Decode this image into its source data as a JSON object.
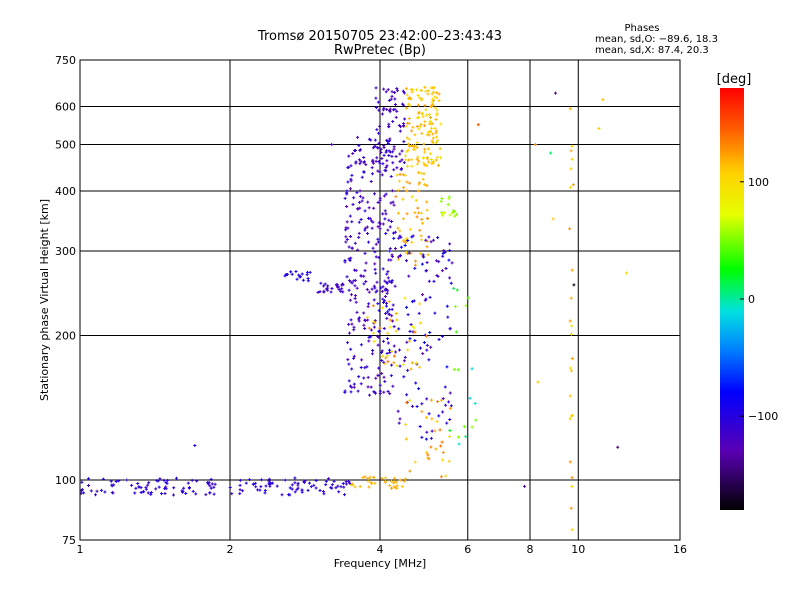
{
  "chart_data": {
    "type": "scatter",
    "title": "Tromsø 20150705 23:42:00–23:43:43",
    "subtitle": "RwPretec (Bp)",
    "xlabel": "Frequency [MHz]",
    "ylabel": "Stationary phase Virtual Height [km]",
    "x_scale": "log2",
    "y_scale": "log",
    "xlim": [
      1,
      16
    ],
    "ylim": [
      75,
      750
    ],
    "x_ticks": [
      1,
      2,
      4,
      6,
      8,
      10,
      16
    ],
    "y_ticks": [
      75,
      100,
      200,
      300,
      400,
      500,
      600,
      750
    ],
    "x_tick_labels": [
      "1",
      "2",
      "4",
      "6",
      "8",
      "10",
      "16"
    ],
    "y_tick_labels": [
      "75",
      "100",
      "200",
      "300",
      "400",
      "500",
      "600",
      "750"
    ],
    "grid": true,
    "phase_stats": {
      "heading": "Phases",
      "line_o": "mean, sd,O: −89.6, 18.3",
      "line_x": "mean, sd,X:  87.4, 20.3"
    },
    "colorbar": {
      "label": "[deg]",
      "range": [
        -180,
        180
      ],
      "ticks": [
        100,
        0,
        -100
      ],
      "tick_labels": [
        "100",
        "0",
        "−100"
      ]
    },
    "clusters": [
      {
        "x": [
          1.0,
          3.5
        ],
        "y": [
          93,
          101
        ],
        "phase": [
          -95,
          -115
        ],
        "n": 160
      },
      {
        "x": [
          3.5,
          4.5
        ],
        "y": [
          96,
          102
        ],
        "phase": [
          110,
          125
        ],
        "n": 35
      },
      {
        "x": [
          2.55,
          2.9
        ],
        "y": [
          260,
          272
        ],
        "phase": [
          -90,
          -100
        ],
        "n": 18
      },
      {
        "x": [
          3.0,
          3.4
        ],
        "y": [
          246,
          258
        ],
        "phase": [
          -105,
          -120
        ],
        "n": 25
      },
      {
        "x": [
          3.4,
          4.3
        ],
        "y": [
          150,
          520
        ],
        "phase": [
          -100,
          -130
        ],
        "n": 300
      },
      {
        "x": [
          3.9,
          4.5
        ],
        "y": [
          440,
          660
        ],
        "phase": [
          -105,
          -125
        ],
        "n": 80
      },
      {
        "x": [
          4.5,
          5.3
        ],
        "y": [
          450,
          660
        ],
        "phase": [
          95,
          125
        ],
        "n": 140
      },
      {
        "x": [
          4.3,
          5.0
        ],
        "y": [
          280,
          440
        ],
        "phase": [
          100,
          130
        ],
        "n": 60
      },
      {
        "x": [
          4.0,
          5.6
        ],
        "y": [
          120,
          330
        ],
        "phase": [
          -80,
          -130
        ],
        "n": 130
      },
      {
        "x": [
          3.7,
          5.0
        ],
        "y": [
          170,
          240
        ],
        "phase": [
          80,
          140
        ],
        "n": 40
      },
      {
        "x": [
          4.5,
          5.6
        ],
        "y": [
          100,
          150
        ],
        "phase": [
          100,
          140
        ],
        "n": 30
      },
      {
        "x": [
          5.3,
          5.7
        ],
        "y": [
          350,
          390
        ],
        "phase": [
          50,
          70
        ],
        "n": 15
      },
      {
        "x": [
          5.5,
          6.3
        ],
        "y": [
          110,
          260
        ],
        "phase": [
          -20,
          60
        ],
        "n": 18
      },
      {
        "x": [
          9.6,
          9.8
        ],
        "y": [
          78,
          640
        ],
        "phase": [
          95,
          130
        ],
        "n": 25
      }
    ],
    "isolated_points": [
      {
        "x": 1.7,
        "y": 118,
        "phase": -95
      },
      {
        "x": 3.2,
        "y": 500,
        "phase": -120
      },
      {
        "x": 9.0,
        "y": 640,
        "phase": -140
      },
      {
        "x": 9.8,
        "y": 255,
        "phase": -170
      },
      {
        "x": 12.0,
        "y": 117,
        "phase": -150
      },
      {
        "x": 8.8,
        "y": 480,
        "phase": 10
      },
      {
        "x": 11.0,
        "y": 540,
        "phase": 110
      },
      {
        "x": 11.2,
        "y": 620,
        "phase": 115
      },
      {
        "x": 12.5,
        "y": 270,
        "phase": 100
      },
      {
        "x": 8.2,
        "y": 500,
        "phase": 130
      },
      {
        "x": 8.9,
        "y": 350,
        "phase": 110
      },
      {
        "x": 6.3,
        "y": 550,
        "phase": 150
      },
      {
        "x": 7.8,
        "y": 97,
        "phase": -120
      },
      {
        "x": 8.3,
        "y": 160,
        "phase": 110
      }
    ]
  }
}
